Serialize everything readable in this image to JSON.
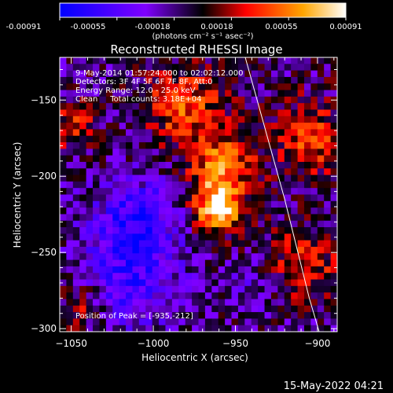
{
  "colorbar": {
    "tick_labels": [
      "-0.00091",
      "-0.00055",
      "-0.00018",
      "0.00018",
      "0.00055",
      "0.00091"
    ],
    "unit_label": "(photons cm⁻² s⁻¹ asec⁻²)",
    "colors": [
      "#0000ff",
      "#7f00ff",
      "#000000",
      "#ff0000",
      "#ffa500",
      "#ffffff"
    ]
  },
  "chart_data": {
    "type": "heatmap",
    "title": "Reconstructed RHESSI Image",
    "xlabel": "Heliocentric X (arcsec)",
    "ylabel": "Heliocentric Y (arcsec)",
    "xlim": [
      -1057,
      -888
    ],
    "ylim": [
      -302,
      -122
    ],
    "x_ticks": [
      -1050,
      -1000,
      -950,
      -900
    ],
    "y_ticks": [
      -300,
      -250,
      -200,
      -150
    ],
    "x_tick_labels": [
      "−1050",
      "−1000",
      "−950",
      "−900"
    ],
    "y_tick_labels": [
      "−300",
      "−250",
      "−200",
      "−150"
    ],
    "value_range": [
      -0.00091,
      0.00091
    ],
    "peak": [
      -935,
      -212
    ],
    "limb_line": {
      "x": [
        -944,
        -920,
        -905,
        -899
      ],
      "y": [
        -122,
        -215,
        -280,
        -302
      ]
    },
    "info_lines": [
      "9-May-2014 01:57:24.000 to 02:02:12.000",
      "Detectors: 3F 4F 5F 6F 7F 8F, Att:0",
      "Energy Range: 12.0 - 25.0 keV",
      "Clean     Total counts: 3.18E+04"
    ],
    "peak_label": "Position of Peak = [-935,-212]"
  },
  "footer_date": "15-May-2022 04:21"
}
